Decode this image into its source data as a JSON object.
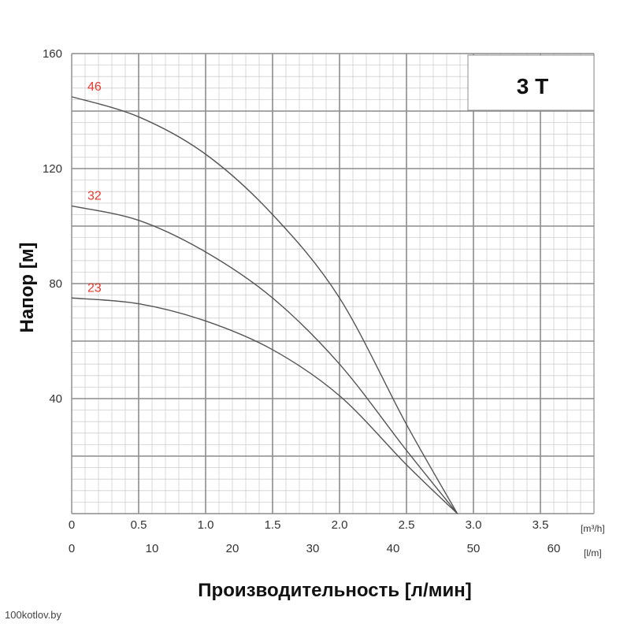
{
  "chart_data": {
    "type": "line",
    "title": "3 T",
    "ylabel": "Напор [м]",
    "xlabel": "Производительность [л/мин]",
    "ylim": [
      0,
      160
    ],
    "xlim": [
      0,
      3.9
    ],
    "y_ticks": [
      "160",
      "120",
      "80",
      "40"
    ],
    "y_tick_values": [
      160,
      120,
      80,
      40
    ],
    "x_ticks_primary": [
      "0",
      "0.5",
      "1.0",
      "1.5",
      "2.0",
      "2.5",
      "3.0",
      "3.5"
    ],
    "x_tick_values_primary": [
      0,
      0.5,
      1.0,
      1.5,
      2.0,
      2.5,
      3.0,
      3.5
    ],
    "x_unit_primary": "[m³/h]",
    "x_ticks_secondary": [
      "0",
      "10",
      "20",
      "30",
      "40",
      "50",
      "60"
    ],
    "x_unit_secondary": "[l/m]",
    "grid": true,
    "series": [
      {
        "name": "46",
        "x": [
          0,
          0.5,
          1.0,
          1.5,
          2.0,
          2.5,
          2.88
        ],
        "y": [
          145,
          138,
          125,
          104,
          75,
          31,
          0
        ]
      },
      {
        "name": "32",
        "x": [
          0,
          0.5,
          1.0,
          1.5,
          2.0,
          2.5,
          2.88
        ],
        "y": [
          107,
          102,
          91,
          75,
          52,
          22,
          0
        ]
      },
      {
        "name": "23",
        "x": [
          0,
          0.5,
          1.0,
          1.5,
          2.0,
          2.5,
          2.88
        ],
        "y": [
          75,
          73,
          67,
          57,
          41,
          17,
          0
        ]
      }
    ],
    "colors": {
      "curve": "#555555",
      "series_label": "#e23b2e",
      "grid_major": "#8c8c8c",
      "grid_minor": "#cfcfcf"
    }
  },
  "watermark": "100kotlov.by"
}
